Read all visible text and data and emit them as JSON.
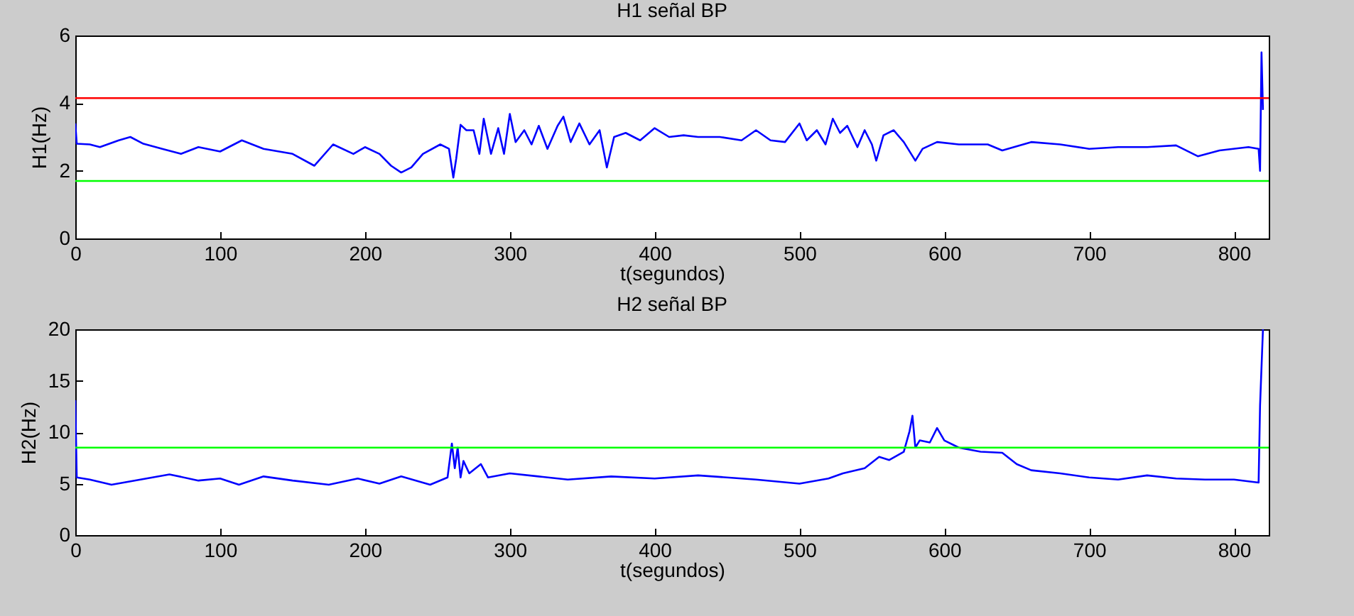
{
  "chart_data": [
    {
      "type": "line",
      "title": "H1 señal BP",
      "xlabel": "t(segundos)",
      "ylabel": "H1(Hz)",
      "xlim": [
        0,
        824
      ],
      "xticks": [
        0,
        100,
        200,
        300,
        400,
        500,
        600,
        700,
        800
      ],
      "ylim": [
        0,
        6
      ],
      "yticks": [
        0,
        2,
        4,
        6
      ],
      "grid": false,
      "ref_lines": [
        {
          "axis": "y",
          "value": 4.15,
          "color": "#ff0000"
        },
        {
          "axis": "y",
          "value": 1.7,
          "color": "#00ff00"
        }
      ],
      "series": [
        {
          "color": "#0000ff",
          "x": [
            0,
            1,
            10,
            17,
            30,
            38,
            47,
            60,
            73,
            85,
            100,
            115,
            130,
            150,
            165,
            178,
            192,
            200,
            210,
            218,
            225,
            232,
            240,
            252,
            258,
            261,
            263,
            266,
            270,
            275,
            279,
            282,
            287,
            292,
            296,
            300,
            304,
            310,
            315,
            320,
            326,
            333,
            337,
            342,
            348,
            355,
            362,
            367,
            372,
            380,
            390,
            400,
            410,
            420,
            430,
            445,
            460,
            470,
            480,
            490,
            500,
            505,
            512,
            518,
            523,
            528,
            533,
            540,
            545,
            550,
            553,
            558,
            565,
            572,
            580,
            585,
            595,
            610,
            630,
            640,
            660,
            680,
            700,
            720,
            740,
            760,
            775,
            790,
            810,
            817,
            818,
            819,
            820
          ],
          "values": [
            3.4,
            2.8,
            2.78,
            2.7,
            2.9,
            3.0,
            2.8,
            2.65,
            2.5,
            2.7,
            2.57,
            2.9,
            2.65,
            2.5,
            2.15,
            2.78,
            2.5,
            2.7,
            2.5,
            2.15,
            1.95,
            2.1,
            2.5,
            2.78,
            2.65,
            1.8,
            2.36,
            3.36,
            3.2,
            3.2,
            2.5,
            3.54,
            2.5,
            3.26,
            2.5,
            3.68,
            2.85,
            3.2,
            2.78,
            3.33,
            2.65,
            3.33,
            3.6,
            2.85,
            3.4,
            2.78,
            3.2,
            2.1,
            3.0,
            3.12,
            2.9,
            3.26,
            3.0,
            3.05,
            3.0,
            3.0,
            2.9,
            3.2,
            2.9,
            2.85,
            3.4,
            2.9,
            3.2,
            2.78,
            3.54,
            3.12,
            3.33,
            2.7,
            3.2,
            2.78,
            2.3,
            3.05,
            3.2,
            2.85,
            2.3,
            2.65,
            2.85,
            2.78,
            2.78,
            2.6,
            2.85,
            2.78,
            2.65,
            2.7,
            2.7,
            2.75,
            2.43,
            2.6,
            2.7,
            2.65,
            2.0,
            5.5,
            3.8
          ]
        }
      ]
    },
    {
      "type": "line",
      "title": "H2 señal BP",
      "xlabel": "t(segundos)",
      "ylabel": "H2(Hz)",
      "xlim": [
        0,
        824
      ],
      "xticks": [
        0,
        100,
        200,
        300,
        400,
        500,
        600,
        700,
        800
      ],
      "ylim": [
        0,
        20
      ],
      "yticks": [
        0,
        5,
        10,
        15,
        20
      ],
      "grid": false,
      "ref_lines": [
        {
          "axis": "y",
          "value": 8.5,
          "color": "#00ff00"
        }
      ],
      "series": [
        {
          "color": "#0000ff",
          "x": [
            0,
            1,
            10,
            25,
            45,
            65,
            85,
            100,
            113,
            130,
            150,
            175,
            195,
            210,
            225,
            245,
            257,
            260,
            262,
            264,
            266,
            268,
            272,
            280,
            285,
            300,
            320,
            340,
            370,
            400,
            430,
            470,
            500,
            520,
            530,
            545,
            555,
            562,
            572,
            576,
            578,
            580,
            583,
            590,
            595,
            600,
            610,
            625,
            640,
            650,
            660,
            680,
            700,
            720,
            740,
            760,
            780,
            800,
            817,
            818,
            820
          ],
          "values": [
            13.1,
            5.6,
            5.4,
            4.9,
            5.4,
            5.9,
            5.3,
            5.5,
            4.9,
            5.7,
            5.3,
            4.9,
            5.5,
            5.0,
            5.7,
            4.9,
            5.6,
            8.9,
            6.5,
            8.5,
            5.6,
            7.2,
            6.0,
            6.9,
            5.6,
            6.0,
            5.7,
            5.4,
            5.7,
            5.5,
            5.8,
            5.4,
            5.0,
            5.5,
            6.0,
            6.5,
            7.6,
            7.3,
            8.1,
            10.1,
            11.6,
            8.5,
            9.2,
            9.0,
            10.4,
            9.2,
            8.5,
            8.1,
            8.0,
            6.9,
            6.3,
            6.0,
            5.6,
            5.4,
            5.8,
            5.5,
            5.4,
            5.4,
            5.1,
            12.6,
            20
          ]
        }
      ]
    }
  ]
}
